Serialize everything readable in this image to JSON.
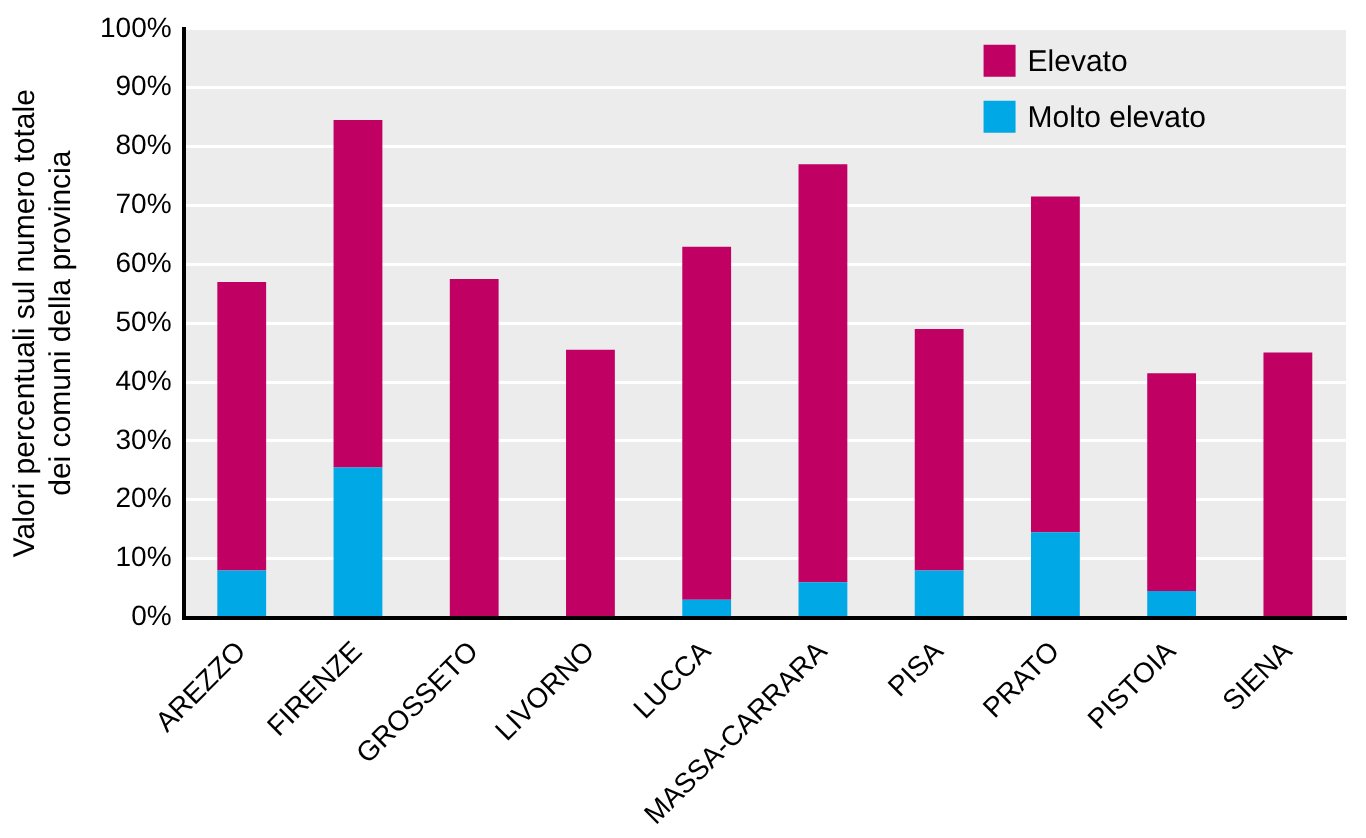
{
  "chart_data": {
    "type": "bar",
    "stacked": true,
    "ylabel": "Valori percentuali sul numero totale\ndei comuni della provincia",
    "categories": [
      "AREZZO",
      "FIRENZE",
      "GROSSETO",
      "LIVORNO",
      "LUCCA",
      "MASSA-CARRARA",
      "PISA",
      "PRATO",
      "PISTOIA",
      "SIENA"
    ],
    "series": [
      {
        "name": "Molto elevato",
        "color": "#00a8e6",
        "values": [
          8,
          25.5,
          0,
          0,
          3,
          6,
          8,
          14.5,
          4.5,
          0
        ]
      },
      {
        "name": "Elevato",
        "color": "#c00063",
        "values": [
          49,
          59,
          57.5,
          45.5,
          60,
          71,
          41,
          57,
          37,
          45
        ]
      }
    ],
    "ylim": [
      0,
      100
    ],
    "yticks": [
      {
        "value": 0,
        "label": "0%"
      },
      {
        "value": 10,
        "label": "10%"
      },
      {
        "value": 20,
        "label": "20%"
      },
      {
        "value": 30,
        "label": "30%"
      },
      {
        "value": 40,
        "label": "40%"
      },
      {
        "value": 50,
        "label": "50%"
      },
      {
        "value": 60,
        "label": "60%"
      },
      {
        "value": 70,
        "label": "70%"
      },
      {
        "value": 80,
        "label": "80%"
      },
      {
        "value": 90,
        "label": "90%"
      },
      {
        "value": 100,
        "label": "100%"
      }
    ],
    "grid": "y",
    "legend": "top right"
  }
}
